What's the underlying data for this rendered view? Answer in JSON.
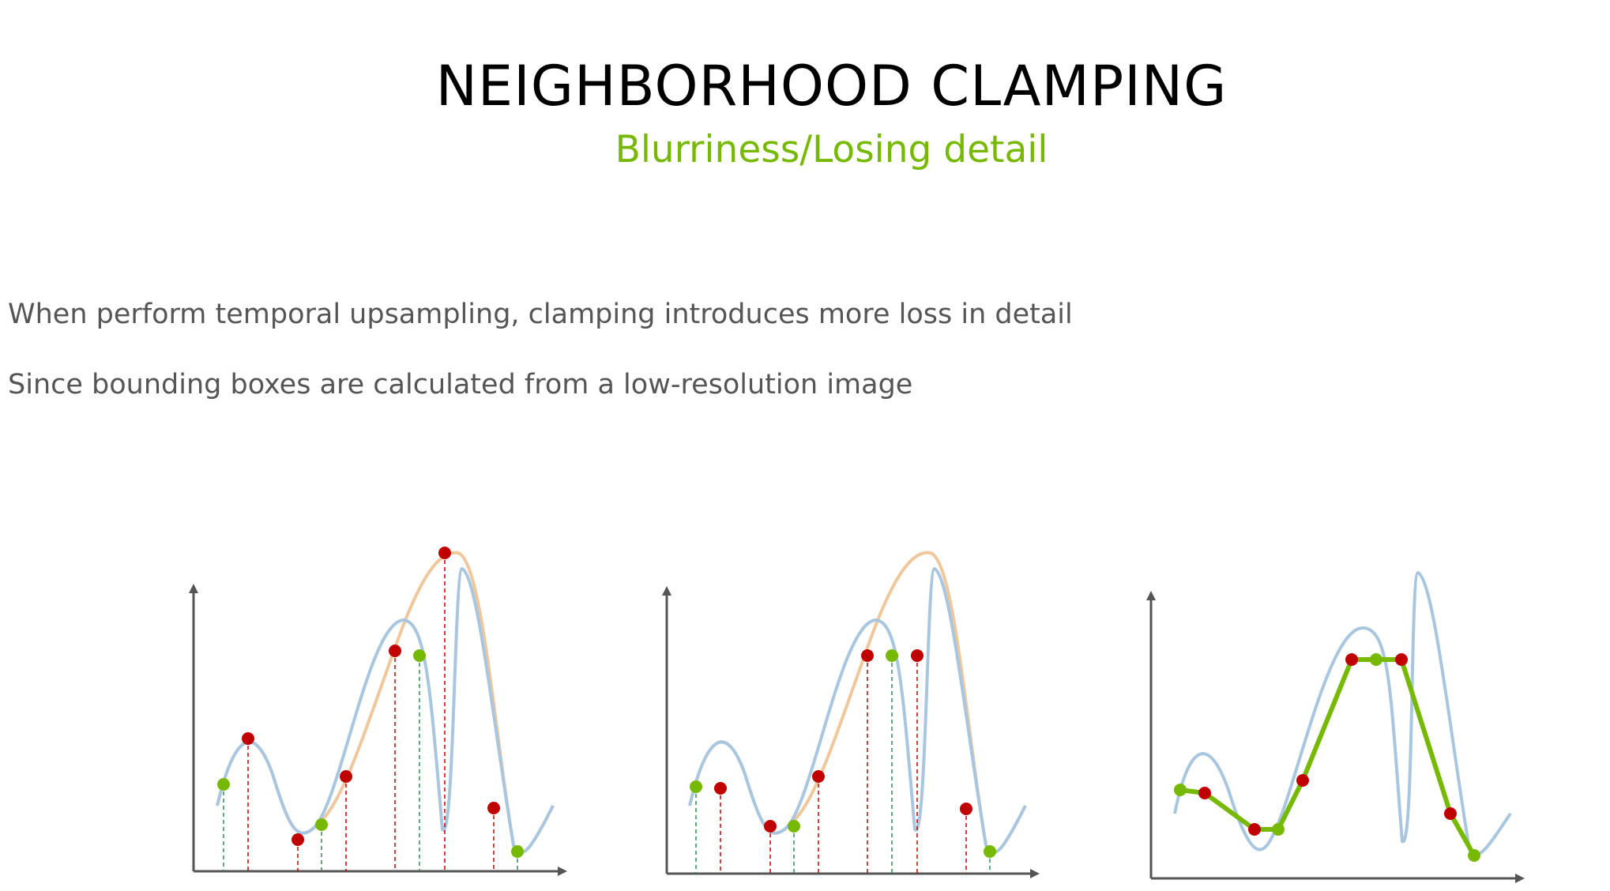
{
  "header": {
    "title": "NEIGHBORHOOD CLAMPING",
    "subtitle": "Blurriness/Losing detail"
  },
  "body_text": [
    "When perform temporal upsampling, clamping introduces more loss in detail",
    "Since bounding boxes are calculated from a low-resolution image"
  ],
  "colors": {
    "accent": "#76b900",
    "red_point": "#c00000",
    "green_point": "#76b900",
    "blue_curve": "#a9c6e0",
    "orange_curve": "#f0c79a",
    "axis": "#555555",
    "text": "#555555"
  },
  "panels": [
    {
      "name": "panel-1-history-samples",
      "points": [
        "green",
        "red",
        "red",
        "green",
        "red",
        "red",
        "green",
        "red",
        "red",
        "green"
      ]
    },
    {
      "name": "panel-2-clamped-samples",
      "points": [
        "green",
        "red",
        "red",
        "green",
        "red",
        "red",
        "green",
        "red",
        "red",
        "green"
      ]
    },
    {
      "name": "panel-3-reconstructed-signal",
      "points": [
        "green",
        "red",
        "red",
        "green",
        "red",
        "red",
        "green",
        "red",
        "red",
        "green"
      ]
    }
  ]
}
